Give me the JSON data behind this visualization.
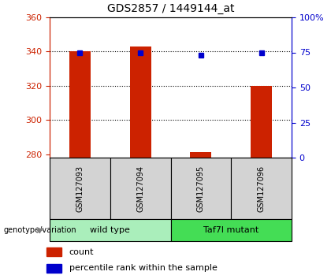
{
  "title": "GDS2857 / 1449144_at",
  "samples": [
    "GSM127093",
    "GSM127094",
    "GSM127095",
    "GSM127096"
  ],
  "count_values": [
    340,
    343,
    281,
    320
  ],
  "percentile_values": [
    75,
    75,
    73,
    75
  ],
  "ylim_left": [
    278,
    360
  ],
  "ylim_right": [
    0,
    100
  ],
  "yticks_left": [
    280,
    300,
    320,
    340,
    360
  ],
  "yticks_right": [
    0,
    25,
    50,
    75,
    100
  ],
  "ytick_labels_right": [
    "0",
    "25",
    "50",
    "75",
    "100%"
  ],
  "bar_color": "#cc2200",
  "dot_color": "#0000cc",
  "grid_color": "#000000",
  "bar_width": 0.35,
  "groups": [
    {
      "label": "wild type",
      "samples": [
        0,
        1
      ],
      "color": "#aaeebb"
    },
    {
      "label": "Taf7l mutant",
      "samples": [
        2,
        3
      ],
      "color": "#44dd55"
    }
  ],
  "group_label": "genotype/variation",
  "legend_count_label": "count",
  "legend_pct_label": "percentile rank within the sample",
  "title_fontsize": 10,
  "tick_label_fontsize": 8,
  "axis_tick_color_left": "#cc2200",
  "axis_tick_color_right": "#0000cc",
  "plot_bg_color": "#ffffff",
  "outer_bg_color": "#ffffff",
  "sample_box_color": "#d3d3d3",
  "base_value": 278
}
